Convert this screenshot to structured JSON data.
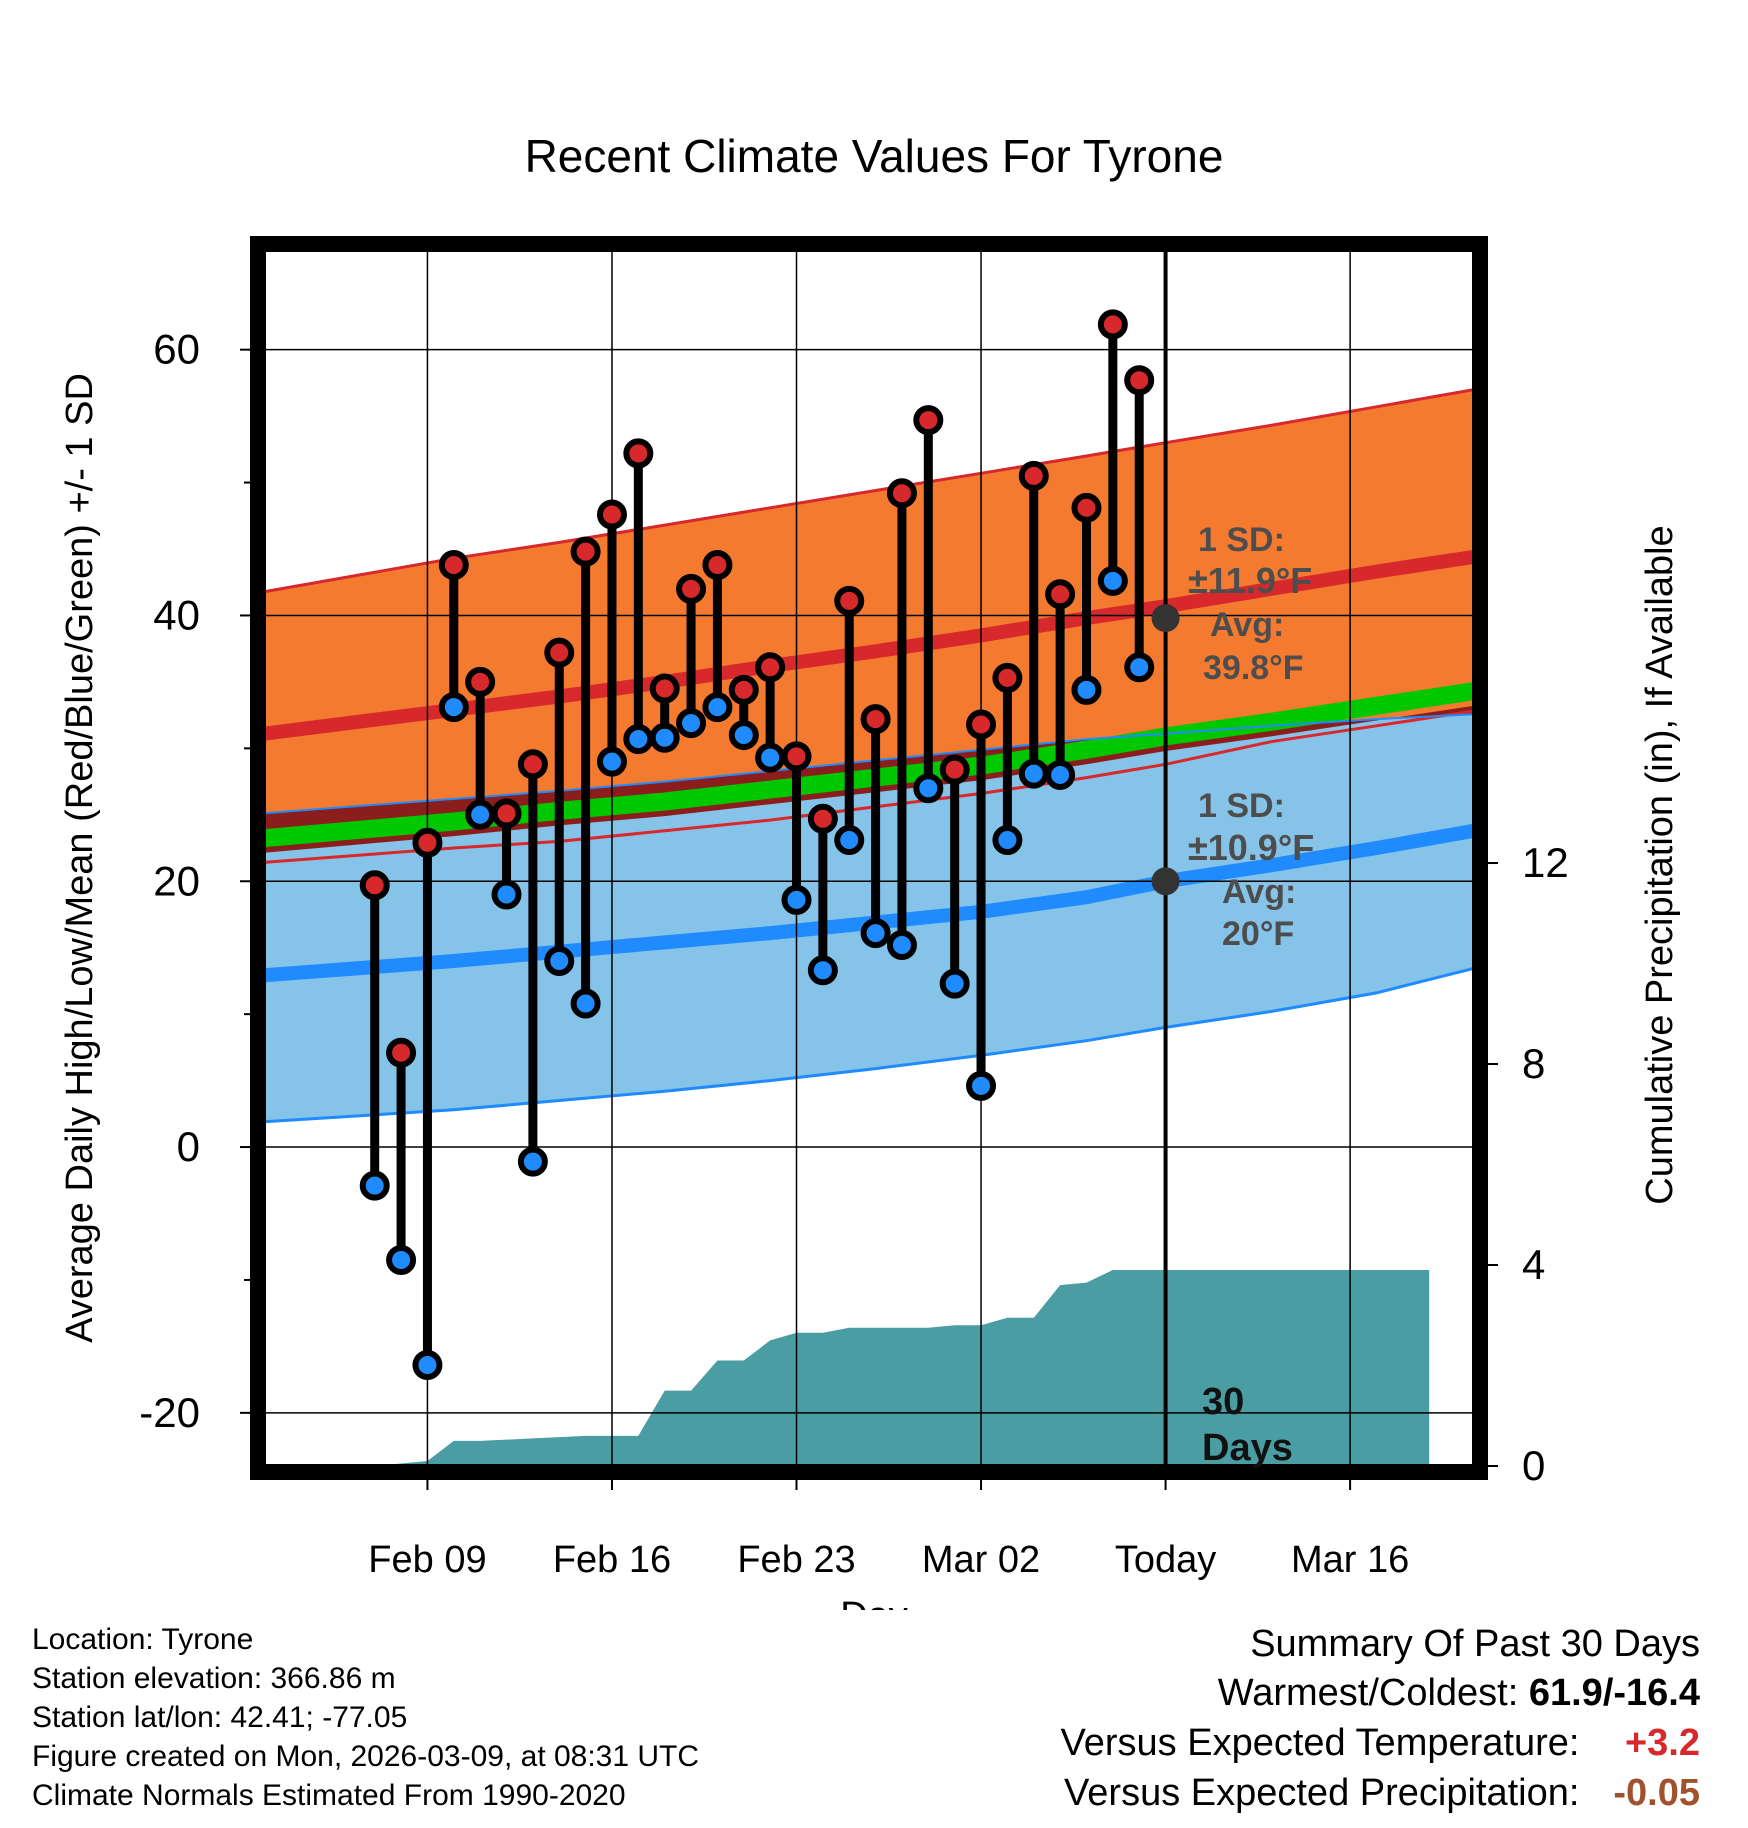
{
  "chart_data": {
    "type": "line",
    "title": "Recent Climate Values For Tyrone",
    "xlabel": "Day",
    "ylabel": "Average Daily High/Low/Mean (Red/Blue/Green) +/- 1 SD",
    "y2label": "Cumulative Precipitation (in), If Available",
    "x_range_days": [
      -34.2,
      11.7
    ],
    "ylim": [
      -24,
      67.5
    ],
    "y_ticks": [
      -20,
      0,
      20,
      40,
      60
    ],
    "y_ticks_minor": [
      -10,
      10,
      30,
      50
    ],
    "y2lim": [
      0,
      24.2
    ],
    "y2_ticks": [
      0,
      4,
      8,
      12
    ],
    "x_ticks": [
      {
        "day": -28,
        "label": "Feb 09"
      },
      {
        "day": -21,
        "label": "Feb 16"
      },
      {
        "day": -14,
        "label": "Feb 23"
      },
      {
        "day": -7,
        "label": "Mar 02"
      },
      {
        "day": 0,
        "label": "Today"
      },
      {
        "day": 7,
        "label": "Mar 16"
      }
    ],
    "today_day": 0,
    "normal_curve_days": [
      -31,
      -27,
      -23,
      -19,
      -15,
      -11,
      -7,
      -3,
      0,
      4,
      8,
      10
    ],
    "normal_high": [
      31.9,
      32.9,
      33.9,
      35.0,
      36.2,
      37.3,
      38.5,
      39.8,
      40.7,
      42.0,
      43.3,
      43.9
    ],
    "normal_high_upper": [
      42.9,
      44.3,
      45.5,
      46.8,
      48.1,
      49.4,
      50.7,
      52.0,
      53.0,
      54.3,
      55.7,
      56.4
    ],
    "normal_high_lower": [
      21.9,
      22.5,
      23.0,
      23.8,
      24.6,
      25.6,
      26.6,
      27.8,
      28.8,
      30.5,
      31.7,
      32.3
    ],
    "normal_mean": [
      23.8,
      24.5,
      25.3,
      26.0,
      26.9,
      27.8,
      28.7,
      29.9,
      30.9,
      32.0,
      33.2,
      33.8
    ],
    "normal_low": [
      13.4,
      14.0,
      14.7,
      15.4,
      16.1,
      16.9,
      17.7,
      18.8,
      20.0,
      21.2,
      22.5,
      23.2
    ],
    "normal_low_upper": [
      25.6,
      26.2,
      26.8,
      27.5,
      28.3,
      29.1,
      29.9,
      30.7,
      31.1,
      31.7,
      32.2,
      32.4
    ],
    "normal_low_lower": [
      2.3,
      2.8,
      3.5,
      4.2,
      5.0,
      5.9,
      6.9,
      8.0,
      9.0,
      10.2,
      11.6,
      12.6
    ],
    "observations": {
      "days": [
        -30,
        -29,
        -28,
        -27,
        -26,
        -25,
        -24,
        -23,
        -22,
        -21,
        -20,
        -19,
        -18,
        -17,
        -16,
        -15,
        -14,
        -13,
        -12,
        -11,
        -10,
        -9,
        -8,
        -7,
        -6,
        -5,
        -4,
        -3,
        -2,
        -1
      ],
      "high": [
        19.7,
        7.1,
        22.9,
        43.8,
        35.0,
        25.1,
        28.8,
        37.2,
        44.8,
        47.6,
        52.2,
        34.5,
        42.0,
        43.8,
        34.4,
        36.1,
        29.4,
        24.7,
        41.1,
        32.2,
        49.2,
        54.7,
        28.4,
        31.8,
        35.3,
        50.5,
        41.6,
        48.1,
        61.9,
        57.7
      ],
      "low": [
        -2.9,
        -8.5,
        -16.4,
        33.1,
        25.0,
        19.0,
        -1.1,
        14.0,
        10.8,
        29.0,
        30.7,
        30.8,
        31.9,
        33.1,
        31.0,
        29.3,
        18.6,
        13.3,
        23.1,
        16.1,
        15.2,
        27.0,
        12.3,
        4.6,
        23.1,
        28.1,
        28.0,
        34.4,
        42.6,
        36.1
      ]
    },
    "precipitation": {
      "days": [
        -30,
        -28,
        -27,
        -26,
        -24,
        -22,
        -20,
        -19,
        -18,
        -17,
        -16,
        -15,
        -14,
        -13,
        -12,
        -11,
        -10,
        -9,
        -8,
        -7,
        -6,
        -5,
        -4,
        -3,
        -2,
        -1,
        0,
        10
      ],
      "cumulative": [
        0.0,
        0.1,
        0.5,
        0.5,
        0.55,
        0.6,
        0.6,
        1.5,
        1.5,
        2.1,
        2.1,
        2.5,
        2.65,
        2.65,
        2.75,
        2.75,
        2.75,
        2.75,
        2.8,
        2.8,
        2.95,
        2.95,
        3.6,
        3.65,
        3.9,
        3.9,
        3.9,
        3.9
      ]
    },
    "annotations": {
      "high_sd_title": "1 SD:",
      "high_sd_value": "±11.9°F",
      "high_avg_title": "Avg:",
      "high_avg_value": "39.8°F",
      "high_avg_point": 39.8,
      "low_sd_title": "1 SD:",
      "low_sd_value": "±10.9°F",
      "low_avg_title": "Avg:",
      "low_avg_value": "20°F",
      "low_avg_point": 20,
      "days_number": "30",
      "days_word": "Days"
    },
    "colors": {
      "high_band": "#F47A30",
      "high_line": "#D7282C",
      "low_band": "#85C3E8",
      "low_line": "#1F8BFF",
      "mean_band": "#8B1D1D",
      "mean_line": "#00C800",
      "precip": "#4A9DA3",
      "high_dot": "#D7282C",
      "low_dot": "#1F8BFF",
      "annotation": "#4D4D4D"
    }
  },
  "footer": {
    "location": "Location: Tyrone",
    "elevation": "Station elevation: 366.86 m",
    "latlon": "Station lat/lon: 42.41; -77.05",
    "created": "Figure created on Mon, 2026-03-09, at 08:31 UTC",
    "normals": "Climate Normals Estimated From 1990-2020"
  },
  "summary": {
    "title": "Summary Of Past 30 Days",
    "warm_cold_label": "Warmest/Coldest:",
    "warm_cold_value": "61.9/-16.4",
    "temp_label": "Versus Expected Temperature:",
    "temp_value": "+3.2",
    "temp_color": "#D7282C",
    "precip_label": "Versus Expected Precipitation:",
    "precip_value": "-0.05",
    "precip_color": "#A0522D"
  }
}
